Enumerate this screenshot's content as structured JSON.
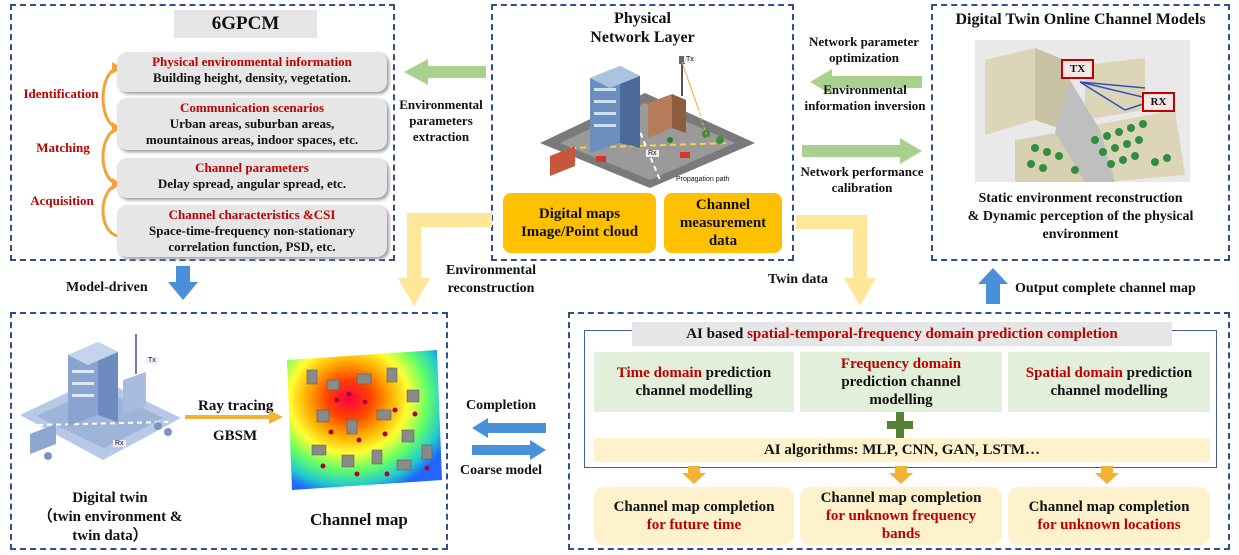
{
  "gpcm": {
    "title": "6GPCM",
    "steps": [
      "Identification",
      "Matching",
      "Acquisition"
    ],
    "pills": [
      {
        "title": "Physical environmental information",
        "lines": [
          "Building height, density, vegetation."
        ]
      },
      {
        "title": "Communication scenarios",
        "lines": [
          "Urban areas, suburban areas,",
          "mountainous areas, indoor spaces, etc."
        ]
      },
      {
        "title": "Channel parameters",
        "lines": [
          "Delay spread, angular spread, etc."
        ]
      },
      {
        "title": "Channel characteristics &CSI",
        "lines": [
          "Space-time-frequency non-stationary",
          "correlation function, PSD, etc."
        ]
      }
    ]
  },
  "physical": {
    "title_1": "Physical",
    "title_2": "Network Layer",
    "tx": "Tx",
    "rx": "Rx",
    "propagation": "Propagation path",
    "box1_line1": "Digital maps",
    "box1_line2": "Image/Point cloud",
    "box2_line1": "Channel",
    "box2_line2": "measurement",
    "box2_line3": "data"
  },
  "twin_models": {
    "title": "Digital Twin Online Channel Models",
    "tx": "TX",
    "rx": "RX",
    "caption_1": "Static environment reconstruction",
    "caption_2": "& Dynamic perception of the physical",
    "caption_3": "environment"
  },
  "arrows": {
    "env_param_1": "Environmental",
    "env_param_2": "parameters",
    "env_param_3": "extraction",
    "net_opt_1": "Network parameter",
    "net_opt_2": "optimization",
    "env_inv_1": "Environmental",
    "env_inv_2": "information inversion",
    "net_perf_1": "Network performance",
    "net_perf_2": "calibration",
    "model_driven": "Model-driven",
    "env_recon_1": "Environmental",
    "env_recon_2": "reconstruction",
    "twin_data": "Twin data",
    "output_map": "Output complete channel map",
    "completion": "Completion",
    "coarse_model": "Coarse model"
  },
  "bottom_left": {
    "ray_tracing": "Ray tracing",
    "gbsm": "GBSM",
    "tx": "Tx",
    "rx": "Rx",
    "dt_1": "Digital twin",
    "dt_2": "（twin environment &",
    "dt_3": "twin data）",
    "channel_map": "Channel map"
  },
  "ai": {
    "header_prefix": "AI based ",
    "header_red": "spatial-temporal-frequency domain prediction completion",
    "time_red": "Time domain",
    "time_rest_1": " prediction",
    "time_rest_2": "channel modelling",
    "freq_red": "Frequency  domain",
    "freq_rest_1": "prediction channel",
    "freq_rest_2": "modelling",
    "spatial_red": "Spatial domain",
    "spatial_rest_1": " prediction",
    "spatial_rest_2": "channel modelling",
    "algorithms": "AI algorithms: MLP, CNN, GAN, LSTM…",
    "out1_black": "Channel map completion",
    "out1_red": "for future time",
    "out2_black": "Channel map completion",
    "out2_red_1": "for unknown frequency",
    "out2_red_2": "bands",
    "out3_black": "Channel map completion",
    "out3_red": "for unknown locations"
  },
  "colors": {
    "dash_border": "#2f4f8f",
    "red_text": "#c00000",
    "gold_box": "#ffc000",
    "cream_box": "#fef2cc",
    "green_box": "#e2efda",
    "green_arrow": "#a9d18e",
    "yellow_arrow": "#ffe699",
    "blue_arrow": "#4a90d9",
    "plus_green": "#548235"
  }
}
